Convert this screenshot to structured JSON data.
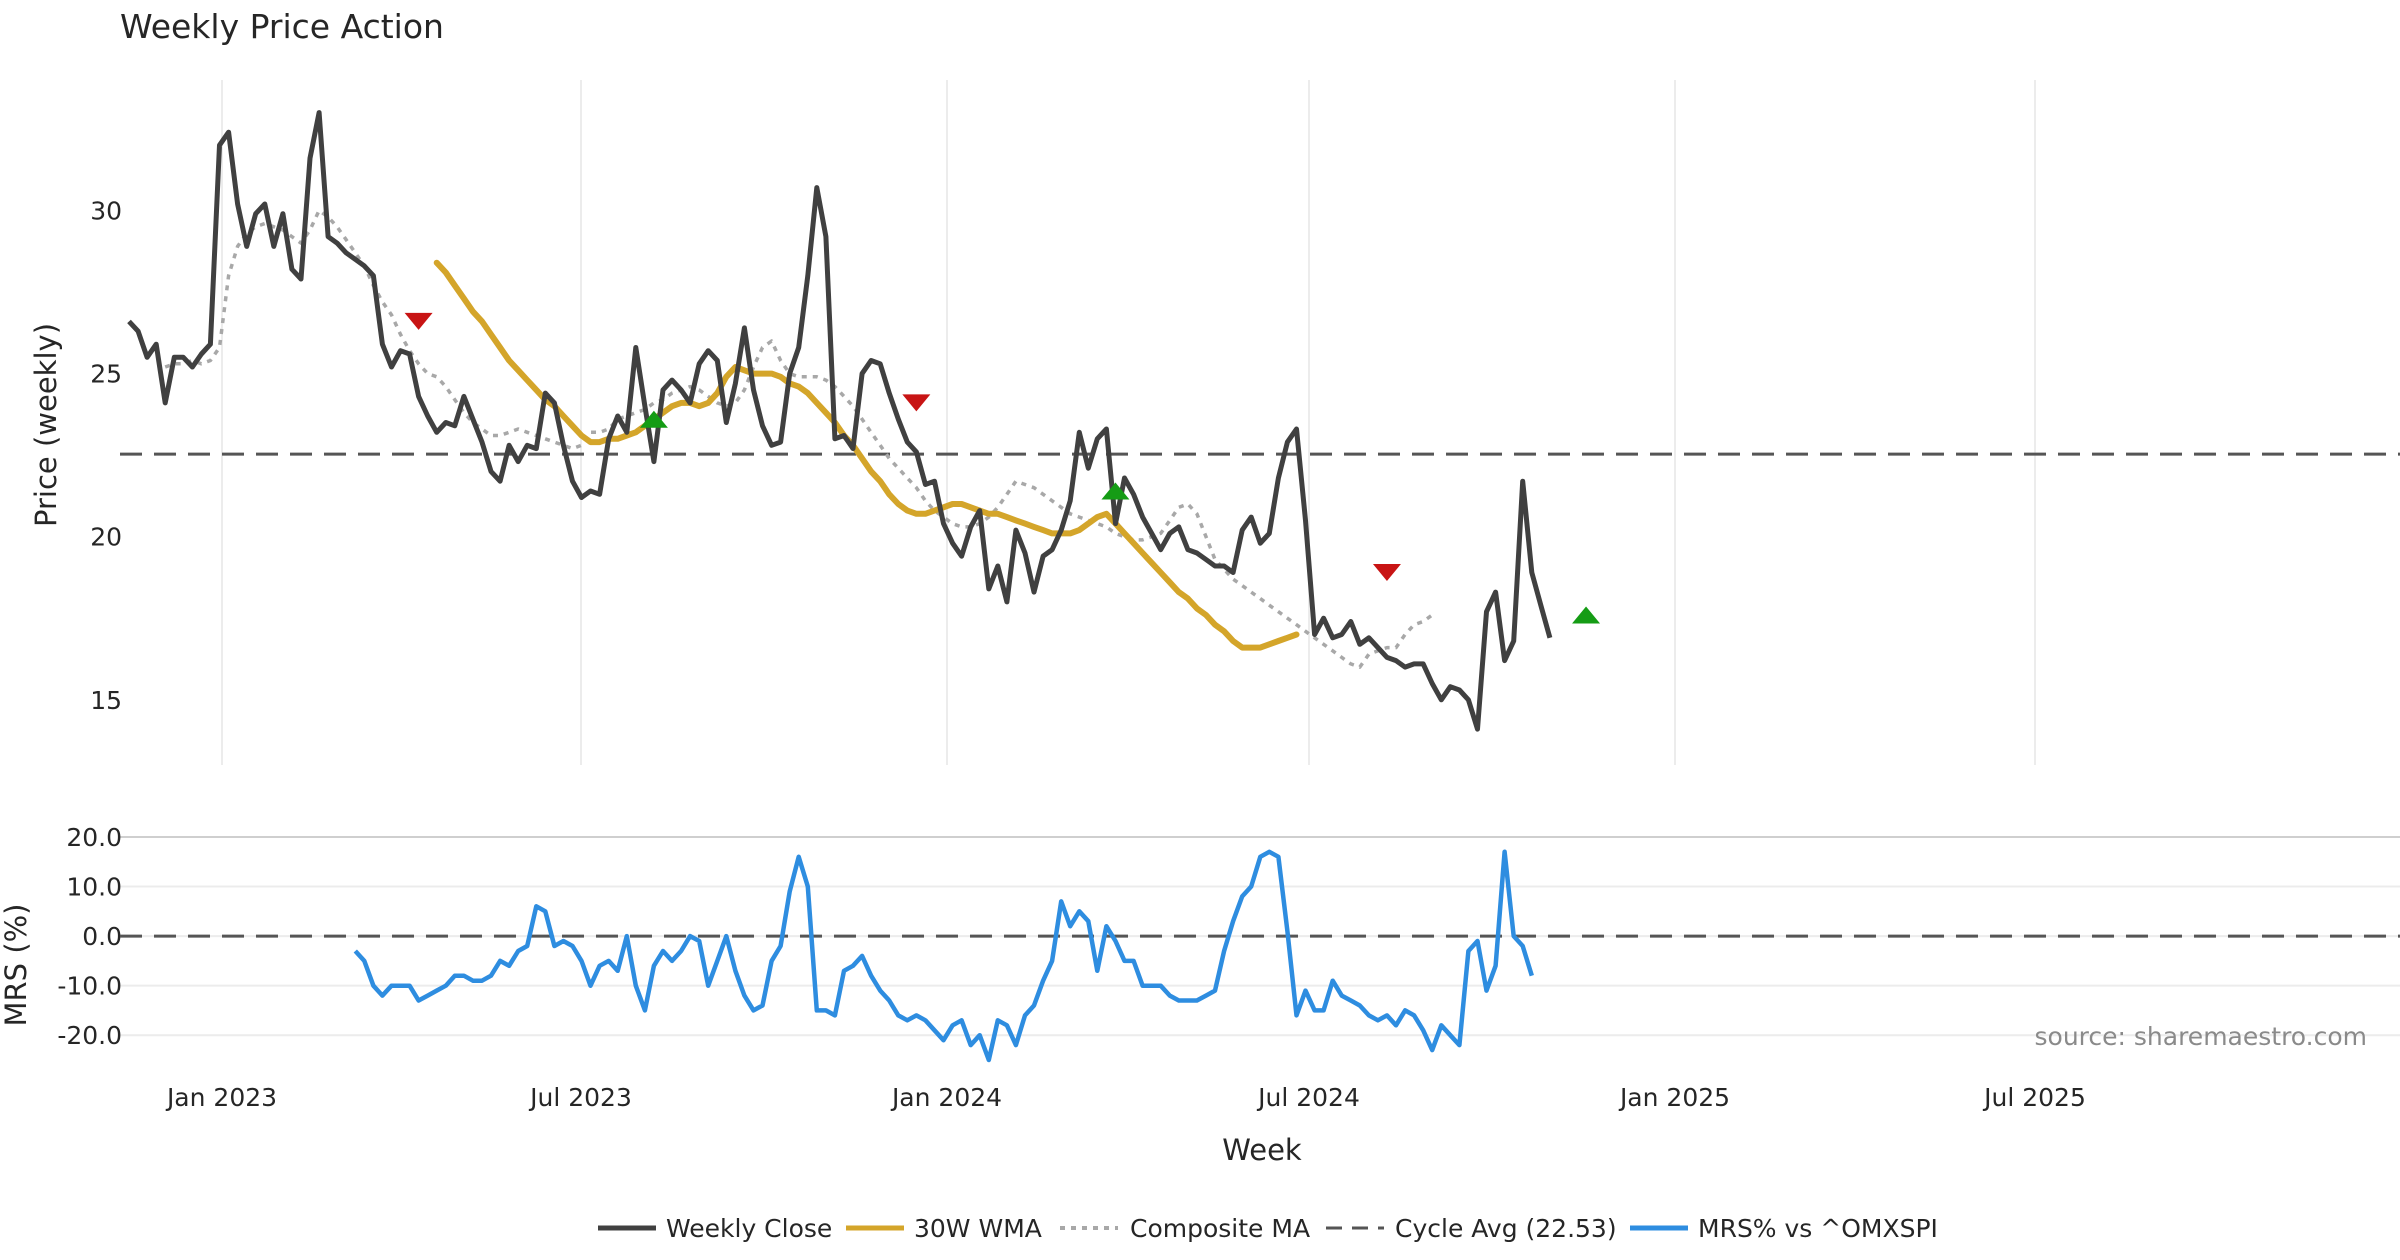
{
  "chart_data": {
    "type": "line",
    "title": "Weekly Price Action",
    "source": "source: sharemaestro.com",
    "xlabel": "Week",
    "x_ticks": [
      "Jan 2023",
      "Jul 2023",
      "Jan 2024",
      "Jul 2024",
      "Jan 2025",
      "Jul 2025"
    ],
    "colors": {
      "close": "#404040",
      "wma": "#d4a52a",
      "composite": "#a8a8a8",
      "cycle": "#555555",
      "mrs": "#2e8de0",
      "buy": "#159c15",
      "sell": "#c81414"
    },
    "price_panel": {
      "ylabel": "Price (weekly)",
      "ylim": [
        13,
        34
      ],
      "yticks": [
        15,
        20,
        25,
        30
      ],
      "cycle_avg": 22.53,
      "series": [
        {
          "name": "Weekly Close",
          "start_week": 0,
          "values": [
            26.6,
            26.3,
            25.5,
            25.9,
            24.1,
            25.5,
            25.5,
            25.2,
            25.6,
            25.9,
            32.0,
            32.4,
            30.2,
            28.9,
            29.9,
            30.2,
            28.9,
            29.9,
            28.2,
            27.9,
            31.6,
            33.0,
            29.2,
            29.0,
            28.7,
            28.5,
            28.3,
            28.0,
            25.9,
            25.2,
            25.7,
            25.6,
            24.3,
            23.7,
            23.2,
            23.5,
            23.4,
            24.3,
            23.6,
            22.9,
            22.0,
            21.7,
            22.8,
            22.3,
            22.8,
            22.7,
            24.4,
            24.1,
            22.8,
            21.7,
            21.2,
            21.4,
            21.3,
            23.0,
            23.7,
            23.2,
            25.8,
            24.0,
            22.3,
            24.5,
            24.8,
            24.5,
            24.1,
            25.3,
            25.7,
            25.4,
            23.5,
            24.7,
            26.4,
            24.5,
            23.4,
            22.8,
            22.9,
            25.0,
            25.8,
            28.0,
            30.7,
            29.2,
            23.0,
            23.1,
            22.7,
            25.0,
            25.4,
            25.3,
            24.4,
            23.6,
            22.9,
            22.6,
            21.6,
            21.7,
            20.4,
            19.8,
            19.4,
            20.3,
            20.8,
            18.4,
            19.1,
            18.0,
            20.2,
            19.5,
            18.3,
            19.4,
            19.6,
            20.2,
            21.1,
            23.2,
            22.1,
            23.0,
            23.3,
            20.4,
            21.8,
            21.3,
            20.6,
            20.1,
            19.6,
            20.1,
            20.3,
            19.6,
            19.5,
            19.3,
            19.1,
            19.1,
            18.9,
            20.2,
            20.6,
            19.8,
            20.1,
            21.8,
            22.9,
            23.3,
            20.5,
            17.0,
            17.5,
            16.9,
            17.0,
            17.4,
            16.7,
            16.9,
            16.6,
            16.3,
            16.2,
            16.0,
            16.1,
            16.1,
            15.5,
            15.0,
            15.4,
            15.3,
            15.0,
            14.1,
            17.7,
            18.3,
            16.2,
            16.8,
            21.7,
            18.9,
            17.9,
            16.9
          ]
        },
        {
          "name": "30W WMA",
          "start_week": 34,
          "values": [
            28.4,
            28.1,
            27.7,
            27.3,
            26.9,
            26.6,
            26.2,
            25.8,
            25.4,
            25.1,
            24.8,
            24.5,
            24.2,
            24.0,
            23.7,
            23.4,
            23.1,
            22.9,
            22.9,
            23.0,
            23.0,
            23.1,
            23.2,
            23.4,
            23.6,
            23.8,
            24.0,
            24.1,
            24.1,
            24.0,
            24.1,
            24.4,
            24.9,
            25.2,
            25.1,
            25.0,
            25.0,
            25.0,
            24.9,
            24.7,
            24.6,
            24.4,
            24.1,
            23.8,
            23.5,
            23.1,
            22.8,
            22.4,
            22.0,
            21.7,
            21.3,
            21.0,
            20.8,
            20.7,
            20.7,
            20.8,
            20.9,
            21.0,
            21.0,
            20.9,
            20.8,
            20.7,
            20.7,
            20.6,
            20.5,
            20.4,
            20.3,
            20.2,
            20.1,
            20.1,
            20.1,
            20.2,
            20.4,
            20.6,
            20.7,
            20.4,
            20.1,
            19.8,
            19.5,
            19.2,
            18.9,
            18.6,
            18.3,
            18.1,
            17.8,
            17.6,
            17.3,
            17.1,
            16.8,
            16.6,
            16.6,
            16.6,
            16.7,
            16.8,
            16.9,
            17.0
          ]
        },
        {
          "name": "Composite MA",
          "start_week": 4,
          "values": [
            25.2,
            25.3,
            25.3,
            25.4,
            25.3,
            25.4,
            25.8,
            28.0,
            28.9,
            29.3,
            29.5,
            29.6,
            29.5,
            29.4,
            29.2,
            29.0,
            29.4,
            30.0,
            29.8,
            29.5,
            29.1,
            28.7,
            28.3,
            27.7,
            27.2,
            26.8,
            26.2,
            25.7,
            25.3,
            25.0,
            24.9,
            24.6,
            24.2,
            23.8,
            23.5,
            23.3,
            23.1,
            23.1,
            23.2,
            23.3,
            23.2,
            23.1,
            23.0,
            22.9,
            22.8,
            22.7,
            22.8,
            23.2,
            23.2,
            23.3,
            23.6,
            23.7,
            23.8,
            23.9,
            24.1,
            24.2,
            24.4,
            24.5,
            24.6,
            24.5,
            24.3,
            24.1,
            24.0,
            24.1,
            24.5,
            25.2,
            25.8,
            26.0,
            25.4,
            25.0,
            24.9,
            24.9,
            24.9,
            24.8,
            24.6,
            24.3,
            24.0,
            23.6,
            23.2,
            22.8,
            22.4,
            22.1,
            21.8,
            21.5,
            21.1,
            20.8,
            20.6,
            20.4,
            20.3,
            20.3,
            20.4,
            20.6,
            20.9,
            21.3,
            21.7,
            21.6,
            21.5,
            21.3,
            21.1,
            20.9,
            20.7,
            20.6,
            20.5,
            20.4,
            20.3,
            20.1,
            20.0,
            19.9,
            19.9,
            20.0,
            20.1,
            20.5,
            20.9,
            21.0,
            20.7,
            20.0,
            19.3,
            19.0,
            18.7,
            18.5,
            18.3,
            18.1,
            17.9,
            17.7,
            17.5,
            17.3,
            17.1,
            16.9,
            16.7,
            16.5,
            16.3,
            16.1,
            16.0,
            16.4,
            16.5,
            16.6,
            16.6,
            17.0,
            17.3,
            17.4,
            17.6
          ]
        }
      ],
      "signals": [
        {
          "type": "sell",
          "week": 32,
          "value": 26.6
        },
        {
          "type": "buy",
          "week": 58,
          "value": 23.6
        },
        {
          "type": "sell",
          "week": 87,
          "value": 24.1
        },
        {
          "type": "buy",
          "week": 109,
          "value": 21.4
        },
        {
          "type": "sell",
          "week": 139,
          "value": 18.9
        },
        {
          "type": "buy",
          "week": 161,
          "value": 17.6
        }
      ]
    },
    "mrs_panel": {
      "ylabel": "MRS (%)",
      "ylim": [
        -25,
        21
      ],
      "yticks": [
        "20.0",
        "10.0",
        "0.0",
        "-10.0",
        "-20.0"
      ],
      "zero_line": 0,
      "series": [
        {
          "name": "MRS% vs ^OMXSPI",
          "start_week": 25,
          "values": [
            -3,
            -5,
            -10,
            -12,
            -10,
            -10,
            -10,
            -13,
            -12,
            -11,
            -10,
            -8,
            -8,
            -9,
            -9,
            -8,
            -5,
            -6,
            -3,
            -2,
            6,
            5,
            -2,
            -1,
            -2,
            -5,
            -10,
            -6,
            -5,
            -7,
            0,
            -10,
            -15,
            -6,
            -3,
            -5,
            -3,
            0,
            -1,
            -10,
            -5,
            0,
            -7,
            -12,
            -15,
            -14,
            -5,
            -2,
            9,
            16,
            10,
            -15,
            -15,
            -16,
            -7,
            -6,
            -4,
            -8,
            -11,
            -13,
            -16,
            -17,
            -16,
            -17,
            -19,
            -21,
            -18,
            -17,
            -22,
            -20,
            -25,
            -17,
            -18,
            -22,
            -16,
            -14,
            -9,
            -5,
            7,
            2,
            5,
            3,
            -7,
            2,
            -1,
            -5,
            -5,
            -10,
            -10,
            -10,
            -12,
            -13,
            -13,
            -13,
            -12,
            -11,
            -3,
            3,
            8,
            10,
            16,
            17,
            16,
            1,
            -16,
            -11,
            -15,
            -15,
            -9,
            -12,
            -13,
            -14,
            -16,
            -17,
            -16,
            -18,
            -15,
            -16,
            -19,
            -23,
            -18,
            -20,
            -22,
            -3,
            -1,
            -11,
            -6,
            17,
            0,
            -2,
            -8
          ]
        }
      ]
    },
    "legend": [
      "Weekly Close",
      "30W WMA",
      "Composite MA",
      "Cycle Avg (22.53)",
      "MRS% vs ^OMXSPI"
    ]
  }
}
